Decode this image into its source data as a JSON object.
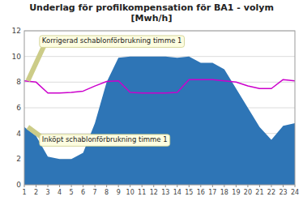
{
  "chart_data": {
    "type": "area",
    "title": "Underlag för profilkompensation för BA1 - volym\n[Mwh/h]",
    "x": [
      1,
      2,
      3,
      4,
      5,
      6,
      7,
      8,
      9,
      10,
      11,
      12,
      13,
      14,
      15,
      16,
      17,
      18,
      19,
      20,
      21,
      22,
      23,
      24
    ],
    "series": [
      {
        "type": "area",
        "color": "#2E75B6",
        "values": [
          4.5,
          3.8,
          2.2,
          2.0,
          2.0,
          2.5,
          4.8,
          8.0,
          9.9,
          10.0,
          10.0,
          10.0,
          10.0,
          9.9,
          10.0,
          9.5,
          9.5,
          9.0,
          7.5,
          6.0,
          4.5,
          3.5,
          4.6,
          4.8
        ]
      },
      {
        "type": "line",
        "color": "#CC00CC",
        "values": [
          8.1,
          8.0,
          7.15,
          7.15,
          7.2,
          7.3,
          7.7,
          8.05,
          8.1,
          7.2,
          7.15,
          7.15,
          7.15,
          7.2,
          8.2,
          8.2,
          8.2,
          8.1,
          8.0,
          7.7,
          7.5,
          7.5,
          8.2,
          8.1
        ]
      }
    ],
    "xlim": [
      1,
      24
    ],
    "xticks": [
      1,
      2,
      3,
      4,
      5,
      6,
      7,
      8,
      9,
      10,
      11,
      12,
      13,
      14,
      15,
      16,
      17,
      18,
      19,
      20,
      21,
      22,
      23,
      24
    ],
    "ylim": [
      0,
      12
    ],
    "yticks": [
      0,
      2,
      4,
      6,
      8,
      10,
      12
    ],
    "grid": true,
    "annotations": [
      {
        "text": "Korrigerad schablonförbrukning timme 1",
        "xy": [
          1.3,
          8.1
        ],
        "xytext": [
          2.5,
          11.5
        ]
      },
      {
        "text": "Inköpt schablonförbrukning timme 1",
        "xy": [
          1.3,
          4.5
        ],
        "xytext": [
          2.5,
          3.8
        ]
      }
    ]
  }
}
